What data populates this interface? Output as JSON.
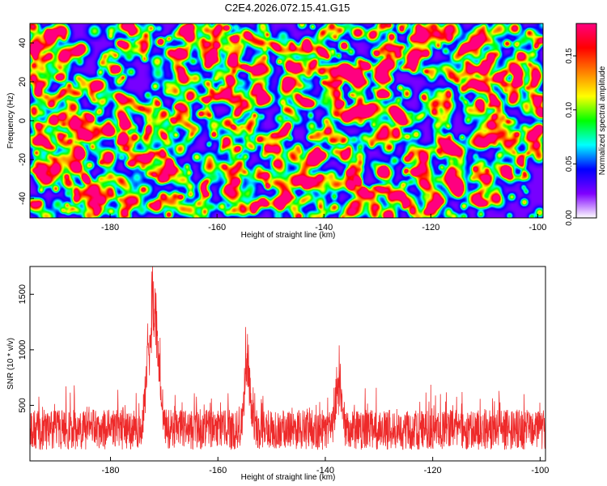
{
  "title": "C2E4.2026.072.15.41.G15",
  "colors": {
    "colormap": [
      "#ffffff",
      "#7f00ff",
      "#0000ff",
      "#00ffff",
      "#00ff00",
      "#ffff00",
      "#ff8000",
      "#ff0000",
      "#ff0080"
    ],
    "line": "#ee2a2a"
  },
  "chart_data": [
    {
      "type": "heatmap",
      "xlabel": "Height of straight line (km)",
      "ylabel": "Frequency (Hz)",
      "xlim": [
        -195,
        -99
      ],
      "ylim": [
        -50,
        50
      ],
      "xticks": [
        -180,
        -160,
        -140,
        -120,
        -100
      ],
      "yticks": [
        -40,
        -20,
        0,
        20,
        40
      ],
      "colorbar": {
        "label": "Normalized spectral amplitude",
        "range": [
          0.0,
          0.18
        ],
        "ticks": [
          0.0,
          0.05,
          0.1,
          0.15
        ],
        "tick_labels": [
          "0.00",
          "0.05",
          "0.10",
          "0.15"
        ]
      },
      "description_values": {
        "background_level": 0.04,
        "typical_peak": 0.1,
        "max_peak": 0.16
      }
    },
    {
      "type": "line",
      "xlabel": "Height of straight line (km)",
      "ylabel": "SNR (10 * v/v)",
      "xlim": [
        -195,
        -99
      ],
      "ylim": [
        0,
        1750
      ],
      "xticks": [
        -180,
        -160,
        -140,
        -120,
        -100
      ],
      "yticks": [
        500,
        1000,
        1500
      ],
      "baseline": 280,
      "noise_amplitude": 180,
      "peaks": [
        {
          "x": -172.0,
          "value": 1750
        },
        {
          "x": -154.5,
          "value": 1050
        },
        {
          "x": -137.5,
          "value": 780
        }
      ]
    }
  ]
}
